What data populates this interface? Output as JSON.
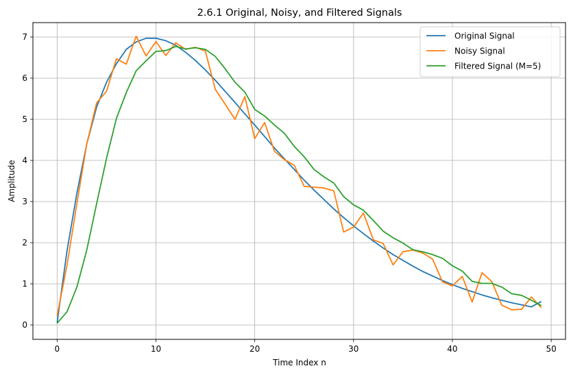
{
  "chart_data": {
    "type": "line",
    "title": "2.6.1 Original, Noisy, and Filtered Signals",
    "xlabel": "Time Index n",
    "ylabel": "Amplitude",
    "xlim": [
      -2.45,
      51.45
    ],
    "ylim": [
      -0.35,
      7.35
    ],
    "xticks": [
      0,
      10,
      20,
      30,
      40,
      50
    ],
    "yticks": [
      0,
      1,
      2,
      3,
      4,
      5,
      6,
      7
    ],
    "grid": true,
    "legend_position": "top-right",
    "x": [
      0,
      1,
      2,
      3,
      4,
      5,
      6,
      7,
      8,
      9,
      10,
      11,
      12,
      13,
      14,
      15,
      16,
      17,
      18,
      19,
      20,
      21,
      22,
      23,
      24,
      25,
      26,
      27,
      28,
      29,
      30,
      31,
      32,
      33,
      34,
      35,
      36,
      37,
      38,
      39,
      40,
      41,
      42,
      43,
      44,
      45,
      46,
      47,
      48,
      49
    ],
    "series": [
      {
        "name": "Original Signal",
        "color": "#1f77b4",
        "values": [
          0.05,
          1.8,
          3.2,
          4.4,
          5.3,
          5.9,
          6.35,
          6.7,
          6.88,
          6.97,
          6.97,
          6.91,
          6.8,
          6.63,
          6.43,
          6.2,
          5.95,
          5.68,
          5.41,
          5.13,
          4.86,
          4.58,
          4.3,
          4.04,
          3.78,
          3.52,
          3.28,
          3.05,
          2.82,
          2.61,
          2.41,
          2.22,
          2.04,
          1.87,
          1.71,
          1.57,
          1.43,
          1.3,
          1.19,
          1.08,
          0.98,
          0.89,
          0.81,
          0.73,
          0.66,
          0.6,
          0.54,
          0.49,
          0.44,
          0.57
        ]
      },
      {
        "name": "Noisy Signal",
        "color": "#ff7f0e",
        "values": [
          0.22,
          1.45,
          2.95,
          4.4,
          5.4,
          5.68,
          6.47,
          6.34,
          7.02,
          6.54,
          6.89,
          6.55,
          6.86,
          6.7,
          6.75,
          6.66,
          5.73,
          5.37,
          5.0,
          5.55,
          4.53,
          4.92,
          4.22,
          4.02,
          3.88,
          3.37,
          3.35,
          3.33,
          3.26,
          2.26,
          2.38,
          2.72,
          2.07,
          1.98,
          1.46,
          1.78,
          1.82,
          1.75,
          1.6,
          1.05,
          0.95,
          1.18,
          0.56,
          1.27,
          1.05,
          0.48,
          0.37,
          0.38,
          0.68,
          0.42
        ]
      },
      {
        "name": "Filtered Signal (M=5)",
        "color": "#2ca02c",
        "values": [
          0.04,
          0.32,
          0.92,
          1.82,
          2.95,
          4.05,
          5.02,
          5.65,
          6.18,
          6.42,
          6.65,
          6.67,
          6.77,
          6.71,
          6.74,
          6.7,
          6.53,
          6.23,
          5.9,
          5.66,
          5.24,
          5.08,
          4.86,
          4.66,
          4.34,
          4.09,
          3.78,
          3.6,
          3.45,
          3.12,
          2.92,
          2.79,
          2.54,
          2.28,
          2.12,
          1.99,
          1.83,
          1.78,
          1.71,
          1.62,
          1.44,
          1.31,
          1.06,
          1.01,
          1.01,
          0.92,
          0.76,
          0.72,
          0.6,
          0.47
        ]
      }
    ]
  }
}
